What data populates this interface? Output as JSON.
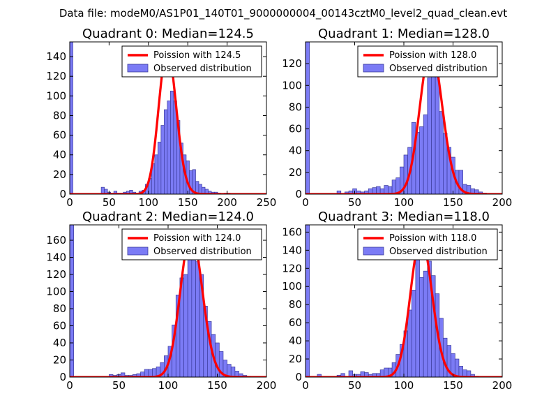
{
  "suptitle": "Data file: modeM0/AS1P01_140T01_9000000004_00143cztM0_level2_quad_clean.evt",
  "colors": {
    "bar_fill": "#7b7bf5",
    "bar_edge": "#3a3a9a",
    "poisson_line": "#ff0000",
    "legend_border": "#000000"
  },
  "chart_data": [
    {
      "type": "bar",
      "title": "Quadrant 0: Median=124.5",
      "median": 124.5,
      "xlim": [
        0,
        250
      ],
      "ylim": [
        0,
        155
      ],
      "xticks": [
        0,
        50,
        100,
        150,
        200,
        250
      ],
      "yticks": [
        0,
        20,
        40,
        60,
        80,
        100,
        120,
        140
      ],
      "legend": [
        "Poission with 124.5",
        "Observed distribution"
      ],
      "legend_loc": "top-right",
      "bin_width": 4,
      "bins": [
        [
          0,
          155
        ],
        [
          40,
          7
        ],
        [
          44,
          5
        ],
        [
          48,
          2
        ],
        [
          52,
          1
        ],
        [
          56,
          3
        ],
        [
          60,
          1
        ],
        [
          64,
          1
        ],
        [
          68,
          2
        ],
        [
          72,
          3
        ],
        [
          76,
          4
        ],
        [
          80,
          2
        ],
        [
          84,
          1
        ],
        [
          88,
          3
        ],
        [
          92,
          4
        ],
        [
          96,
          10
        ],
        [
          100,
          16
        ],
        [
          104,
          31
        ],
        [
          108,
          40
        ],
        [
          112,
          53
        ],
        [
          116,
          70
        ],
        [
          120,
          86
        ],
        [
          124,
          95
        ],
        [
          128,
          105
        ],
        [
          132,
          95
        ],
        [
          136,
          75
        ],
        [
          140,
          52
        ],
        [
          144,
          40
        ],
        [
          148,
          34
        ],
        [
          152,
          24
        ],
        [
          156,
          25
        ],
        [
          160,
          13
        ],
        [
          164,
          10
        ],
        [
          168,
          7
        ],
        [
          172,
          5
        ],
        [
          176,
          3
        ],
        [
          180,
          2
        ],
        [
          184,
          2
        ],
        [
          188,
          1
        ],
        [
          196,
          1
        ],
        [
          200,
          1
        ]
      ],
      "poisson_peak": 146
    },
    {
      "type": "bar",
      "title": "Quadrant 1: Median=128.0",
      "median": 128.0,
      "xlim": [
        0,
        200
      ],
      "ylim": [
        0,
        140
      ],
      "xticks": [
        0,
        50,
        100,
        150,
        200
      ],
      "yticks": [
        0,
        20,
        40,
        60,
        80,
        100,
        120
      ],
      "legend": [
        "Poission with 128.0",
        "Observed distribution"
      ],
      "legend_loc": "top-right",
      "bin_width": 4,
      "bins": [
        [
          0,
          140
        ],
        [
          32,
          3
        ],
        [
          40,
          2
        ],
        [
          44,
          3
        ],
        [
          48,
          5
        ],
        [
          52,
          3
        ],
        [
          56,
          2
        ],
        [
          60,
          3
        ],
        [
          64,
          5
        ],
        [
          68,
          6
        ],
        [
          72,
          7
        ],
        [
          76,
          5
        ],
        [
          80,
          8
        ],
        [
          84,
          7
        ],
        [
          88,
          13
        ],
        [
          92,
          15
        ],
        [
          96,
          25
        ],
        [
          100,
          36
        ],
        [
          104,
          43
        ],
        [
          108,
          66
        ],
        [
          112,
          57
        ],
        [
          116,
          62
        ],
        [
          120,
          73
        ],
        [
          124,
          107
        ],
        [
          128,
          118
        ],
        [
          132,
          116
        ],
        [
          136,
          76
        ],
        [
          140,
          56
        ],
        [
          144,
          43
        ],
        [
          148,
          34
        ],
        [
          152,
          22
        ],
        [
          156,
          22
        ],
        [
          160,
          9
        ],
        [
          164,
          8
        ],
        [
          168,
          5
        ],
        [
          172,
          4
        ],
        [
          176,
          2
        ],
        [
          180,
          1
        ]
      ],
      "poisson_peak": 134
    },
    {
      "type": "bar",
      "title": "Quadrant 2: Median=124.0",
      "median": 124.0,
      "xlim": [
        0,
        200
      ],
      "ylim": [
        0,
        178
      ],
      "xticks": [
        0,
        50,
        100,
        150,
        200
      ],
      "yticks": [
        0,
        20,
        40,
        60,
        80,
        100,
        120,
        140,
        160
      ],
      "legend": [
        "Poission with 124.0",
        "Observed distribution"
      ],
      "legend_loc": "top-right",
      "bin_width": 4,
      "bins": [
        [
          0,
          178
        ],
        [
          40,
          3
        ],
        [
          44,
          2
        ],
        [
          48,
          3
        ],
        [
          52,
          5
        ],
        [
          56,
          2
        ],
        [
          60,
          2
        ],
        [
          64,
          3
        ],
        [
          68,
          4
        ],
        [
          72,
          6
        ],
        [
          76,
          9
        ],
        [
          80,
          9
        ],
        [
          84,
          10
        ],
        [
          88,
          12
        ],
        [
          92,
          17
        ],
        [
          96,
          25
        ],
        [
          100,
          36
        ],
        [
          104,
          61
        ],
        [
          108,
          96
        ],
        [
          112,
          116
        ],
        [
          116,
          120
        ],
        [
          120,
          140
        ],
        [
          124,
          148
        ],
        [
          128,
          135
        ],
        [
          132,
          120
        ],
        [
          136,
          83
        ],
        [
          140,
          65
        ],
        [
          144,
          50
        ],
        [
          148,
          40
        ],
        [
          152,
          30
        ],
        [
          156,
          20
        ],
        [
          160,
          15
        ],
        [
          164,
          12
        ],
        [
          168,
          7
        ],
        [
          172,
          4
        ],
        [
          176,
          2
        ],
        [
          180,
          1
        ]
      ],
      "poisson_peak": 168
    },
    {
      "type": "bar",
      "title": "Quadrant 3: Median=118.0",
      "median": 118.0,
      "xlim": [
        0,
        200
      ],
      "ylim": [
        0,
        168
      ],
      "xticks": [
        0,
        50,
        100,
        150,
        200
      ],
      "yticks": [
        0,
        20,
        40,
        60,
        80,
        100,
        120,
        140,
        160
      ],
      "legend": [
        "Poission with 118.0",
        "Observed distribution"
      ],
      "legend_loc": "top-right",
      "bin_width": 4,
      "bins": [
        [
          0,
          168
        ],
        [
          12,
          3
        ],
        [
          32,
          2
        ],
        [
          36,
          4
        ],
        [
          44,
          7
        ],
        [
          48,
          3
        ],
        [
          52,
          3
        ],
        [
          56,
          6
        ],
        [
          60,
          5
        ],
        [
          64,
          3
        ],
        [
          68,
          4
        ],
        [
          72,
          4
        ],
        [
          76,
          8
        ],
        [
          80,
          10
        ],
        [
          84,
          10
        ],
        [
          88,
          16
        ],
        [
          92,
          25
        ],
        [
          96,
          36
        ],
        [
          100,
          51
        ],
        [
          104,
          74
        ],
        [
          108,
          96
        ],
        [
          112,
          135
        ],
        [
          116,
          110
        ],
        [
          120,
          117
        ],
        [
          124,
          128
        ],
        [
          128,
          112
        ],
        [
          132,
          92
        ],
        [
          136,
          65
        ],
        [
          140,
          43
        ],
        [
          144,
          35
        ],
        [
          148,
          26
        ],
        [
          152,
          20
        ],
        [
          156,
          12
        ],
        [
          160,
          8
        ],
        [
          164,
          7
        ],
        [
          168,
          3
        ],
        [
          172,
          1
        ]
      ],
      "poisson_peak": 154
    }
  ]
}
